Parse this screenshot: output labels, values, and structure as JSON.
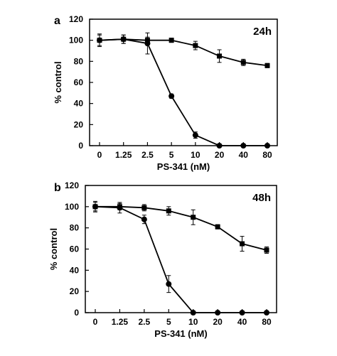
{
  "chart_data": [
    {
      "type": "line",
      "panel_label": "a",
      "annotation": "24h",
      "xlabel": "PS-341 (nM)",
      "ylabel": "% control",
      "ylim": [
        0,
        120
      ],
      "yticks": [
        "0",
        "20",
        "40",
        "60",
        "80",
        "100",
        "120"
      ],
      "categories": [
        "0",
        "1.25",
        "2.5",
        "5",
        "10",
        "20",
        "40",
        "80"
      ],
      "grid": false,
      "series": [
        {
          "marker": "square",
          "values": [
            100,
            101,
            100,
            100,
            95,
            85,
            79,
            76
          ],
          "errors": [
            5,
            4,
            3,
            2,
            4,
            6,
            3,
            2
          ]
        },
        {
          "marker": "circle",
          "values": [
            100,
            101,
            97,
            47,
            10,
            0,
            0,
            0
          ],
          "errors": [
            6,
            4,
            10,
            2,
            3,
            0,
            0,
            0
          ]
        }
      ]
    },
    {
      "type": "line",
      "panel_label": "b",
      "annotation": "48h",
      "xlabel": "PS-341 (nM)",
      "ylabel": "% control",
      "ylim": [
        0,
        120
      ],
      "yticks": [
        "0",
        "20",
        "40",
        "60",
        "80",
        "100",
        "120"
      ],
      "categories": [
        "0",
        "1.25",
        "2.5",
        "5",
        "10",
        "20",
        "40",
        "80"
      ],
      "grid": false,
      "series": [
        {
          "marker": "square",
          "values": [
            100,
            100,
            99,
            96,
            90,
            81,
            65,
            59
          ],
          "errors": [
            4,
            3,
            3,
            4,
            7,
            2,
            7,
            3
          ]
        },
        {
          "marker": "circle",
          "values": [
            100,
            99,
            88,
            27,
            0,
            0,
            0,
            0
          ],
          "errors": [
            5,
            5,
            4,
            8,
            0,
            0,
            0,
            0
          ]
        }
      ]
    }
  ]
}
